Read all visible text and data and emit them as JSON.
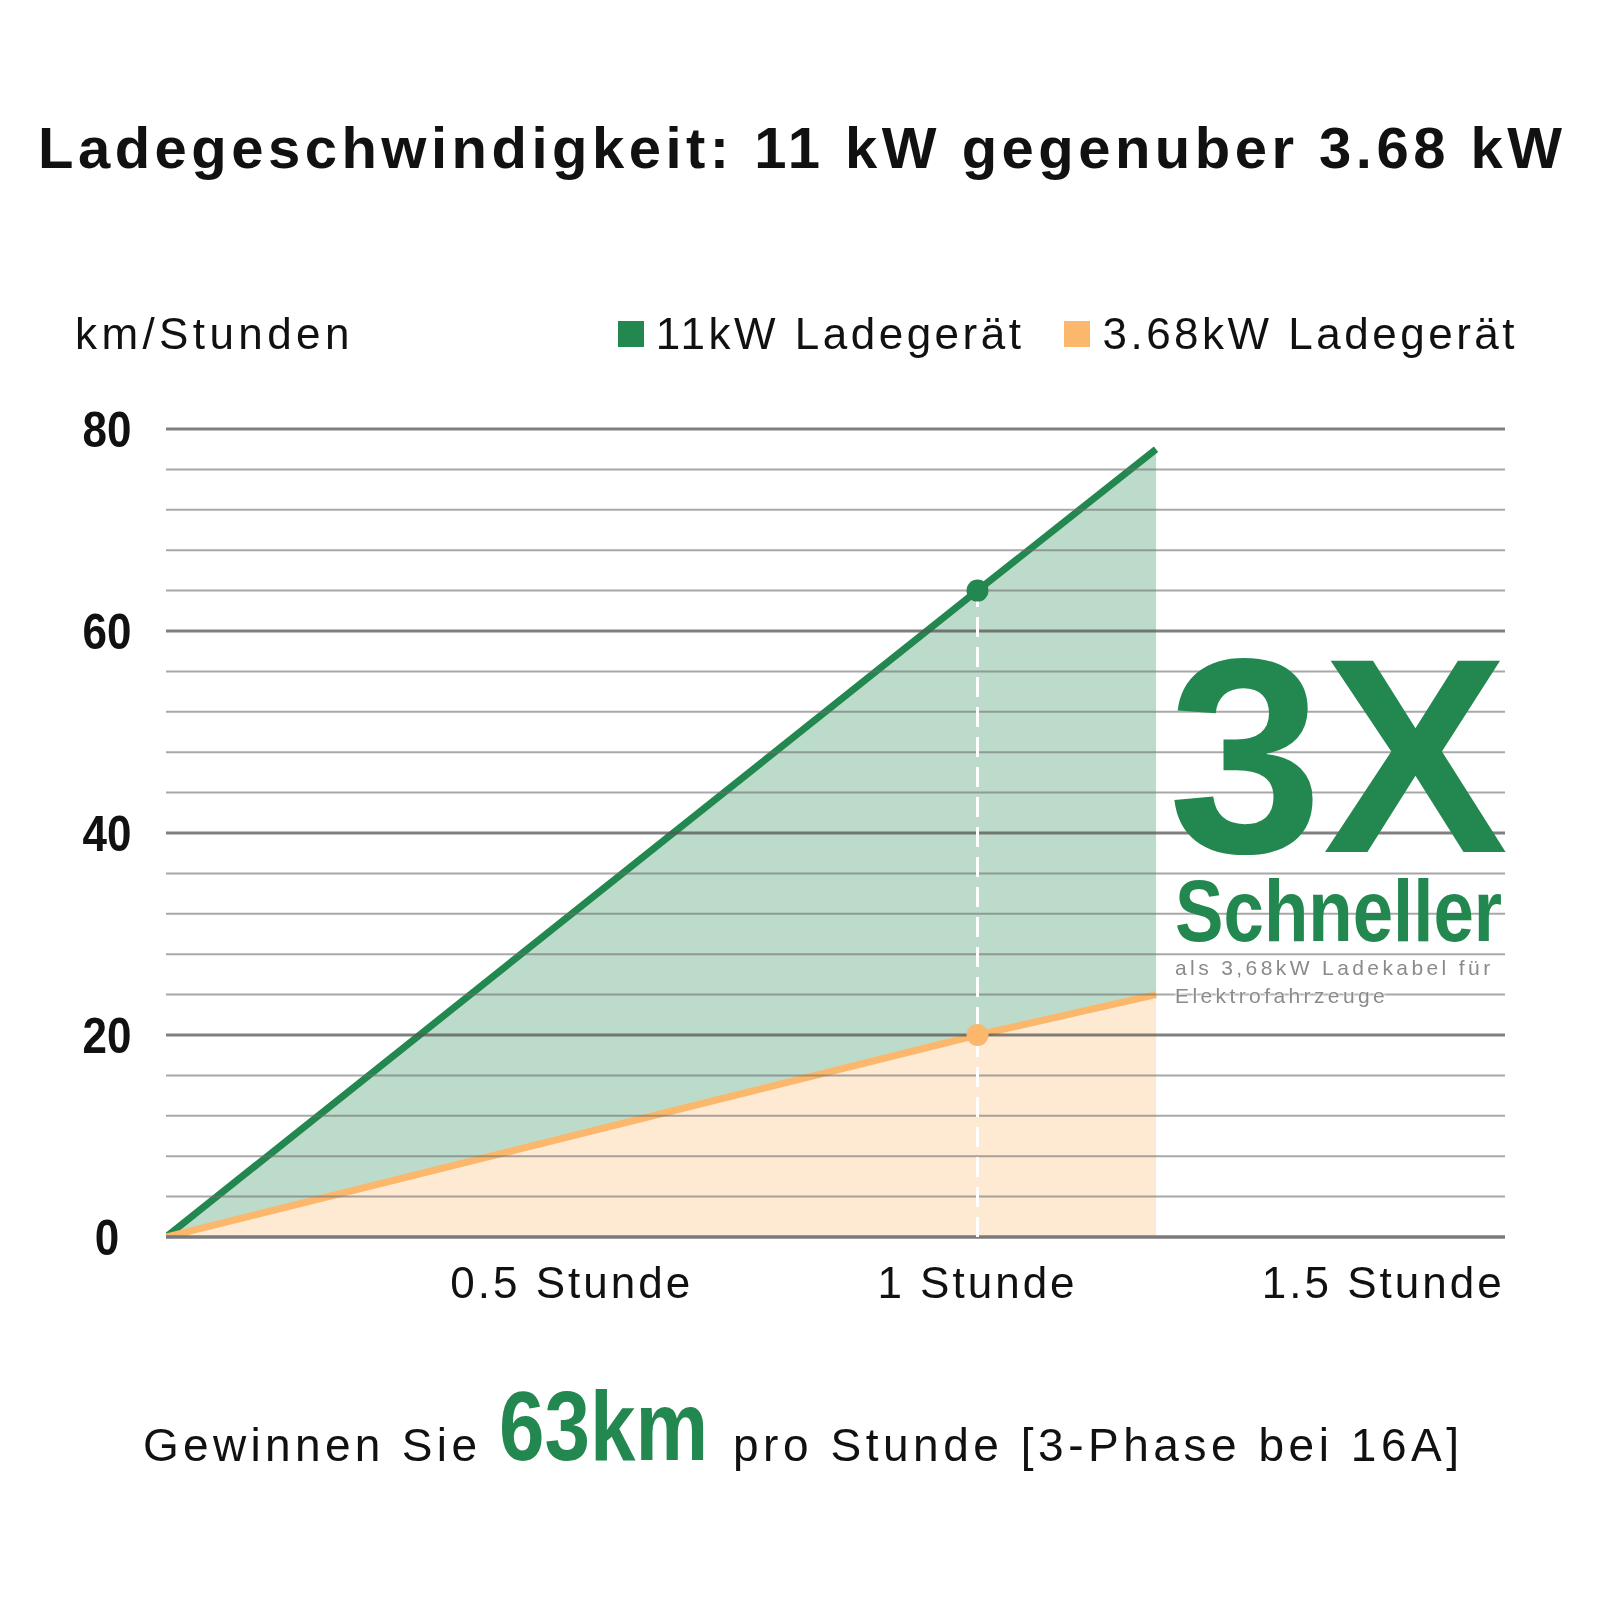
{
  "chart_data": {
    "type": "area",
    "title": "Ladegeschwindigkeit: 11 kW gegenuber 3.68 kW",
    "ylabel": "km/Stunden",
    "x": [
      0,
      1,
      1.22
    ],
    "series": [
      {
        "name": "11kW Ladegerät",
        "color": "#23884f",
        "values": [
          0,
          64,
          78
        ]
      },
      {
        "name": "3.68kW Ladegerät",
        "color": "#fbb86d",
        "values": [
          0,
          20,
          24
        ]
      },
      {
        "type": "scatter",
        "color": "#23884f",
        "x": [
          1
        ],
        "values": [
          64
        ]
      },
      {
        "type": "scatter",
        "color": "#fbb86d",
        "x": [
          1
        ],
        "values": [
          20
        ]
      }
    ],
    "xlim": [
      0,
      1.65
    ],
    "xticks": [
      {
        "value": 0.5,
        "label": "0.5 Stunde"
      },
      {
        "value": 1,
        "label": "1 Stunde"
      },
      {
        "value": 1.5,
        "label": "1.5 Stunde"
      }
    ],
    "ylim": [
      0,
      80
    ],
    "yticks": [
      0,
      {
        "value": 4,
        "label": null
      },
      {
        "value": 8,
        "label": null
      },
      {
        "value": 12,
        "label": null
      },
      {
        "value": 16,
        "label": null
      },
      20,
      {
        "value": 24,
        "label": null
      },
      {
        "value": 28,
        "label": null
      },
      {
        "value": 32,
        "label": null
      },
      {
        "value": 36,
        "label": null
      },
      40,
      {
        "value": 44,
        "label": null
      },
      {
        "value": 48,
        "label": null
      },
      {
        "value": 52,
        "label": null
      },
      {
        "value": 56,
        "label": null
      },
      60,
      {
        "value": 64,
        "label": null
      },
      {
        "value": 68,
        "label": null
      },
      {
        "value": 72,
        "label": null
      },
      {
        "value": 76,
        "label": null
      },
      80
    ],
    "grid": "y",
    "legend": "top right",
    "ref_lines": [
      {
        "axis": "x",
        "value": 1,
        "color": "#ffffff",
        "line_style": "dashed"
      }
    ],
    "annotations": [
      "3X",
      "Schneller",
      "als 3,68kW Ladekabel für Elektrofahrzeuge",
      "Gewinnen Sie",
      "63km",
      "pro Stunde [3-Phase bei 16A]"
    ]
  }
}
